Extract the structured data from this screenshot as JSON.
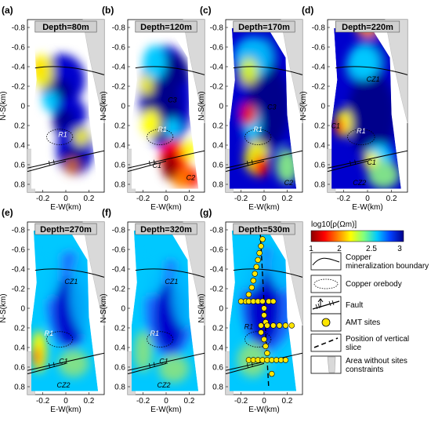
{
  "axis_text": {
    "ns_label": "N-S(km)",
    "ew_label": "E-W(km)",
    "y_ticks": [
      "-0.8",
      "-0.6",
      "-0.4",
      "-0.2",
      "0",
      "0.2",
      "0.4",
      "0.6",
      "0.8"
    ],
    "x_ticks": [
      "-0.2",
      "0",
      "0.2"
    ]
  },
  "panels": [
    {
      "id": "a",
      "letter": "(a)",
      "depth": "Depth=80m",
      "labels": [
        {
          "text": "R1",
          "key": "r1"
        }
      ],
      "show_dots": false,
      "show_slice": false
    },
    {
      "id": "b",
      "letter": "(b)",
      "depth": "Depth=120m",
      "labels": [
        {
          "text": "C3",
          "key": "c3"
        },
        {
          "text": "R1",
          "key": "r1"
        },
        {
          "text": "C1",
          "key": "c1"
        },
        {
          "text": "C2",
          "key": "c2"
        }
      ],
      "show_dots": false,
      "show_slice": false
    },
    {
      "id": "c",
      "letter": "(c)",
      "depth": "Depth=170m",
      "labels": [
        {
          "text": "C3",
          "key": "c3"
        },
        {
          "text": "R1",
          "key": "r1"
        },
        {
          "text": "C2",
          "key": "c2"
        }
      ],
      "show_dots": false,
      "show_slice": false
    },
    {
      "id": "d",
      "letter": "(d)",
      "depth": "Depth=220m",
      "labels": [
        {
          "text": "CZ1",
          "key": "cz1"
        },
        {
          "text": "C1",
          "key": "c1l"
        },
        {
          "text": "R1",
          "key": "r1"
        },
        {
          "text": "C1",
          "key": "c1"
        },
        {
          "text": "CZ2",
          "key": "cz2"
        }
      ],
      "show_dots": false,
      "show_slice": false
    },
    {
      "id": "e",
      "letter": "(e)",
      "depth": "Depth=270m",
      "labels": [
        {
          "text": "CZ1",
          "key": "cz1"
        },
        {
          "text": "R1",
          "key": "r1"
        },
        {
          "text": "C1",
          "key": "c1"
        },
        {
          "text": "CZ2",
          "key": "cz2"
        }
      ],
      "show_dots": false,
      "show_slice": false
    },
    {
      "id": "f",
      "letter": "(f)",
      "depth": "Depth=320m",
      "labels": [
        {
          "text": "CZ1",
          "key": "cz1"
        },
        {
          "text": "R1",
          "key": "r1"
        },
        {
          "text": "C1",
          "key": "c1"
        },
        {
          "text": "CZ2",
          "key": "cz2"
        }
      ],
      "show_dots": false,
      "show_slice": false
    },
    {
      "id": "g",
      "letter": "(g)",
      "depth": "Depth=530m",
      "labels": [
        {
          "text": "R1",
          "key": "r1"
        }
      ],
      "show_dots": true,
      "show_slice": true
    }
  ],
  "colorbar": {
    "title": "log10[ρ(Ωm)]",
    "ticks": [
      "1",
      "2",
      "2.5",
      "3"
    ],
    "colors": [
      "#8b0000",
      "#ff0000",
      "#ff8000",
      "#ffff00",
      "#80ff80",
      "#00c8ff",
      "#0040ff",
      "#00008b"
    ]
  },
  "legend": [
    {
      "symbol": "boundary",
      "text": "Copper mineralization boundary"
    },
    {
      "symbol": "orebody",
      "text": "Copper orebody"
    },
    {
      "symbol": "fault",
      "text": "Fault"
    },
    {
      "symbol": "amt",
      "text": "AMT sites"
    },
    {
      "symbol": "slice",
      "text": "Position of vertical slice"
    },
    {
      "symbol": "no-sites",
      "text": "Area without sites constraints"
    }
  ],
  "colors": {
    "deep_blue": "#00008b",
    "blue": "#0000cd",
    "mid_blue": "#1e6bff",
    "cyan": "#00c8ff",
    "green": "#7fe08a",
    "yellow": "#ffff00",
    "orange": "#ff8000",
    "red": "#ff0000",
    "dark_red": "#8b0000",
    "grey_area": "#d9d9d9",
    "dot_fill": "#ffe600"
  }
}
